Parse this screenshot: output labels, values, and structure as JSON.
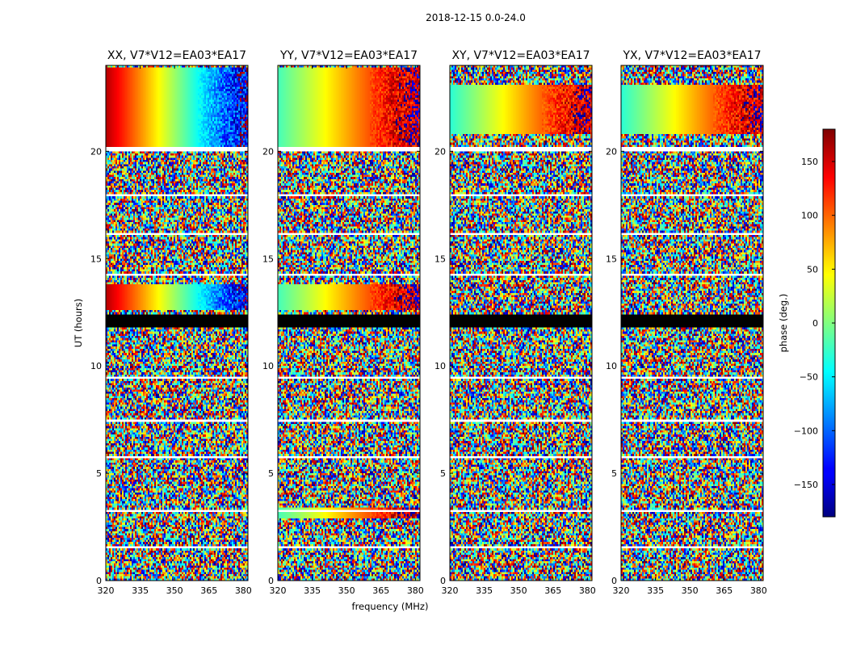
{
  "figure": {
    "title": "2018-12-15 0.0-24.0"
  },
  "chart_data": {
    "type": "heatmap",
    "title": "2018-12-15 0.0-24.0",
    "xlabel": "frequency (MHz)",
    "ylabel": "UT (hours)",
    "xlim": [
      320,
      382
    ],
    "ylim": [
      0,
      24
    ],
    "x_ticks": [
      320,
      335,
      350,
      365,
      380
    ],
    "y_ticks": [
      0,
      5,
      10,
      15,
      20
    ],
    "grid": false,
    "panels": [
      {
        "title": "XX, V7*V12=EA03*EA17",
        "coherent_rows_ut": [
          [
            12.6,
            13.8
          ],
          [
            20.2,
            23.9
          ]
        ],
        "phase_trend_deg": {
          "start": 160,
          "end": -150
        }
      },
      {
        "title": "YY, V7*V12=EA03*EA17",
        "coherent_rows_ut": [
          [
            12.6,
            13.8
          ],
          [
            2.9,
            3.4
          ],
          [
            20.2,
            23.9
          ]
        ],
        "phase_trend_deg": {
          "start": -20,
          "end": 175
        }
      },
      {
        "title": "XY, V7*V12=EA03*EA17",
        "coherent_rows_ut": [
          [
            20.8,
            23.1
          ]
        ],
        "phase_trend_deg": {
          "start": -30,
          "end": 170
        }
      },
      {
        "title": "YX, V7*V12=EA03*EA17",
        "coherent_rows_ut": [
          [
            20.8,
            23.1
          ]
        ],
        "phase_trend_deg": {
          "start": -30,
          "end": 170
        }
      }
    ],
    "flagged_rows_ut": [
      [
        11.8,
        12.4
      ],
      [
        20.0,
        20.2
      ],
      [
        9.4,
        9.5
      ],
      [
        5.7,
        5.8
      ],
      [
        3.2,
        3.3
      ],
      [
        1.5,
        1.6
      ],
      [
        7.4,
        7.5
      ],
      [
        16.1,
        16.2
      ],
      [
        17.9,
        18.0
      ],
      [
        14.2,
        14.3
      ]
    ],
    "colorbar": {
      "label": "phase (deg.)",
      "range": [
        -180,
        180
      ],
      "ticks": [
        150,
        100,
        50,
        0,
        -50,
        -100,
        -150
      ],
      "tick_labels": [
        "150",
        "100",
        "50",
        "0",
        "−50",
        "−100",
        "−150"
      ],
      "colormap": "jet",
      "placement": "right"
    }
  }
}
